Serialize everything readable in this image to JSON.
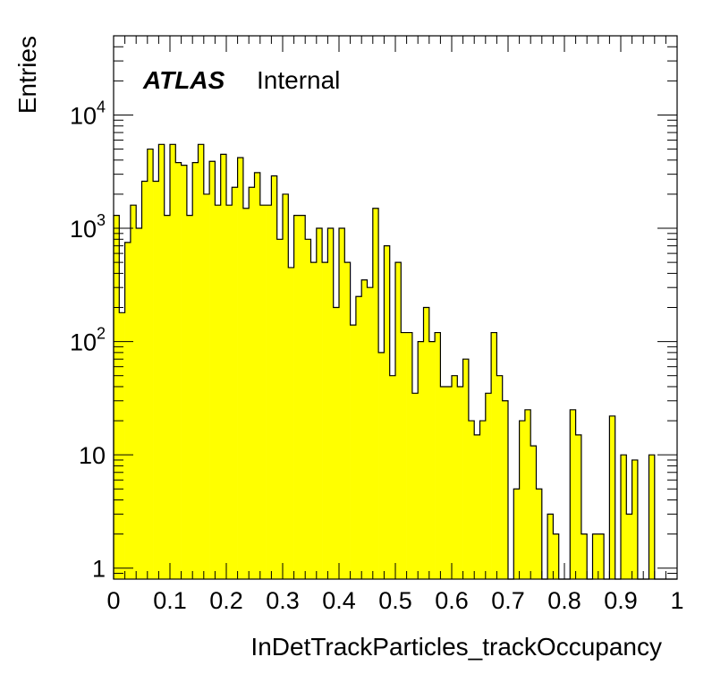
{
  "chart_data": {
    "type": "histogram",
    "title": "",
    "xlabel": "InDetTrackParticles_trackOccupancy",
    "ylabel": "Entries",
    "x_scale": "linear",
    "y_scale": "log",
    "xlim": [
      0,
      1
    ],
    "ylim": [
      0.8,
      50000
    ],
    "bin_width": 0.01,
    "x_ticks": [
      "0",
      "0.1",
      "0.2",
      "0.3",
      "0.4",
      "0.5",
      "0.6",
      "0.7",
      "0.8",
      "0.9",
      "1"
    ],
    "y_ticks": [
      {
        "value": 1,
        "label": "1"
      },
      {
        "value": 10,
        "label": "10"
      },
      {
        "value": 100,
        "label": "10",
        "exp": "2"
      },
      {
        "value": 1000,
        "label": "10",
        "exp": "3"
      },
      {
        "value": 10000,
        "label": "10",
        "exp": "4"
      }
    ],
    "grid": false,
    "fill_color": "#ffff00",
    "line_color": "#000000",
    "values": [
      1300,
      180,
      750,
      1600,
      1000,
      2600,
      5000,
      2600,
      5500,
      1300,
      5500,
      3800,
      3600,
      1300,
      3800,
      5500,
      2000,
      3900,
      1600,
      4500,
      1600,
      2300,
      4200,
      1500,
      2300,
      3100,
      1600,
      1600,
      2900,
      800,
      2000,
      450,
      1300,
      1300,
      800,
      500,
      1000,
      500,
      1000,
      200,
      1000,
      500,
      140,
      250,
      350,
      300,
      1500,
      80,
      700,
      50,
      500,
      120,
      120,
      35,
      100,
      200,
      100,
      120,
      40,
      40,
      50,
      40,
      70,
      20,
      15,
      20,
      35,
      120,
      50,
      30,
      0,
      5,
      20,
      25,
      12,
      5,
      0,
      3,
      2,
      0,
      0,
      25,
      15,
      2,
      0,
      2,
      2,
      0,
      22,
      0,
      10,
      3,
      9,
      0,
      0,
      10,
      0,
      0,
      0,
      0,
      0,
      0,
      0,
      0,
      0,
      0,
      0,
      0,
      0,
      0,
      0,
      0,
      0,
      0,
      0,
      0,
      0,
      0,
      0,
      0,
      0,
      0,
      0,
      0,
      0,
      0,
      0,
      0,
      0,
      0,
      0,
      0,
      0,
      0,
      0,
      0,
      0,
      0,
      0,
      0,
      0,
      0,
      0,
      0,
      0,
      0,
      0,
      0,
      0,
      0
    ],
    "values_note_excluded": true,
    "annotations": [
      {
        "text": "ATLAS",
        "style": "bold-italic"
      },
      {
        "text": "Internal",
        "style": "normal"
      }
    ]
  }
}
